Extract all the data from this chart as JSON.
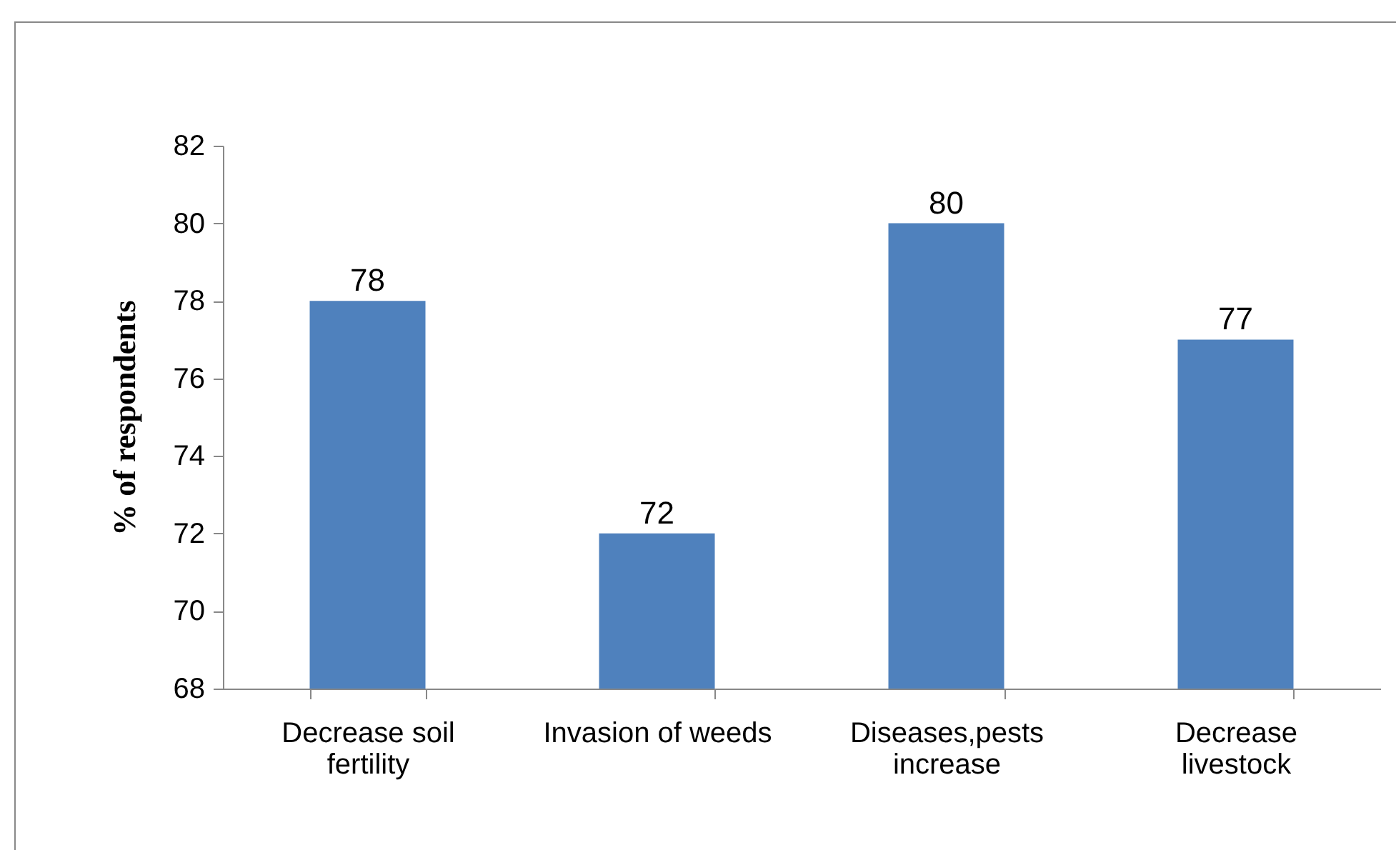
{
  "chart_data": {
    "type": "bar",
    "ylabel": "% of respondents",
    "categories": [
      "Decrease soil fertility",
      "Invasion of weeds",
      "Diseases,pests increase",
      "Decrease livestock"
    ],
    "values": [
      78,
      72,
      80,
      77
    ],
    "color": "#4f81bd",
    "ylim": [
      68,
      82
    ],
    "yticks": [
      68,
      70,
      72,
      74,
      76,
      78,
      80,
      82
    ],
    "grid": false,
    "data_labels": true
  }
}
